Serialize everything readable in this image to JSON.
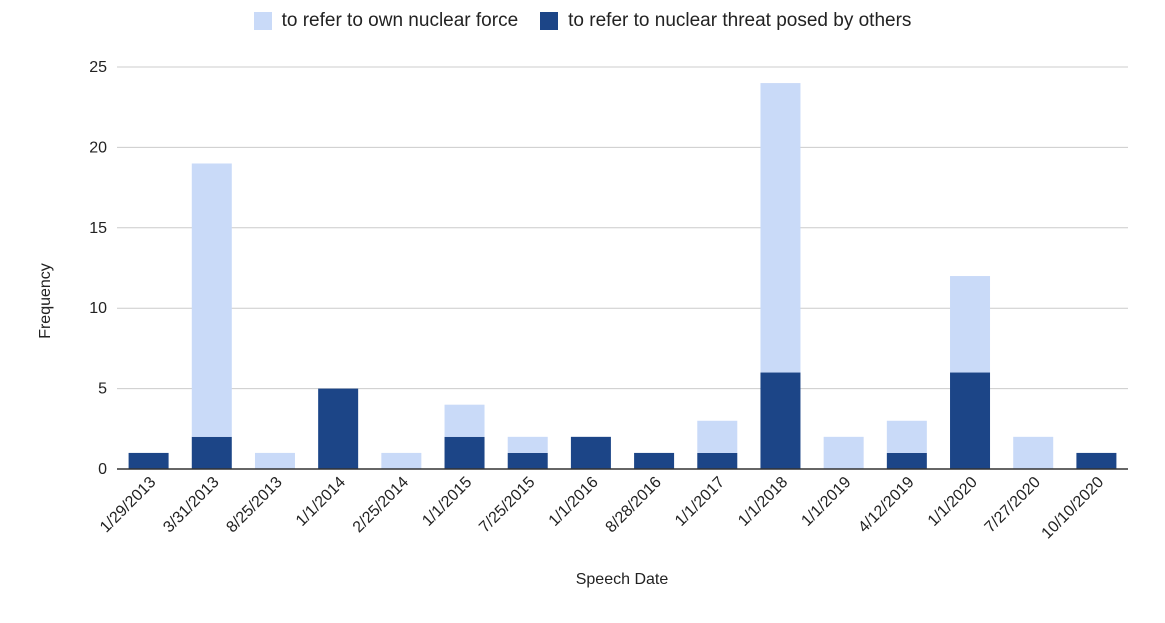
{
  "chart_data": {
    "type": "bar",
    "stacked": true,
    "title": "",
    "xlabel": "Speech Date",
    "ylabel": "Frequency",
    "ylim": [
      0,
      25
    ],
    "yticks": [
      0,
      5,
      10,
      15,
      20,
      25
    ],
    "grid": true,
    "legend_position": "top",
    "categories": [
      "1/29/2013",
      "3/31/2013",
      "8/25/2013",
      "1/1/2014",
      "2/25/2014",
      "1/1/2015",
      "7/25/2015",
      "1/1/2016",
      "8/28/2016",
      "1/1/2017",
      "1/1/2018",
      "1/1/2019",
      "4/12/2019",
      "1/1/2020",
      "7/27/2020",
      "10/10/2020"
    ],
    "series": [
      {
        "name": "to refer to nuclear threat posed by others",
        "color": "#1c4587",
        "values": [
          1,
          2,
          0,
          5,
          0,
          2,
          1,
          2,
          1,
          1,
          6,
          0,
          1,
          6,
          0,
          1
        ]
      },
      {
        "name": "to refer to own nuclear force",
        "color": "#c9daf8",
        "values": [
          0,
          17,
          1,
          0,
          1,
          2,
          1,
          0,
          0,
          2,
          18,
          2,
          2,
          6,
          2,
          0
        ]
      }
    ]
  },
  "legend": [
    {
      "label": "to refer to own nuclear force",
      "color": "#c9daf8"
    },
    {
      "label": "to refer to nuclear threat posed by others",
      "color": "#1c4587"
    }
  ]
}
